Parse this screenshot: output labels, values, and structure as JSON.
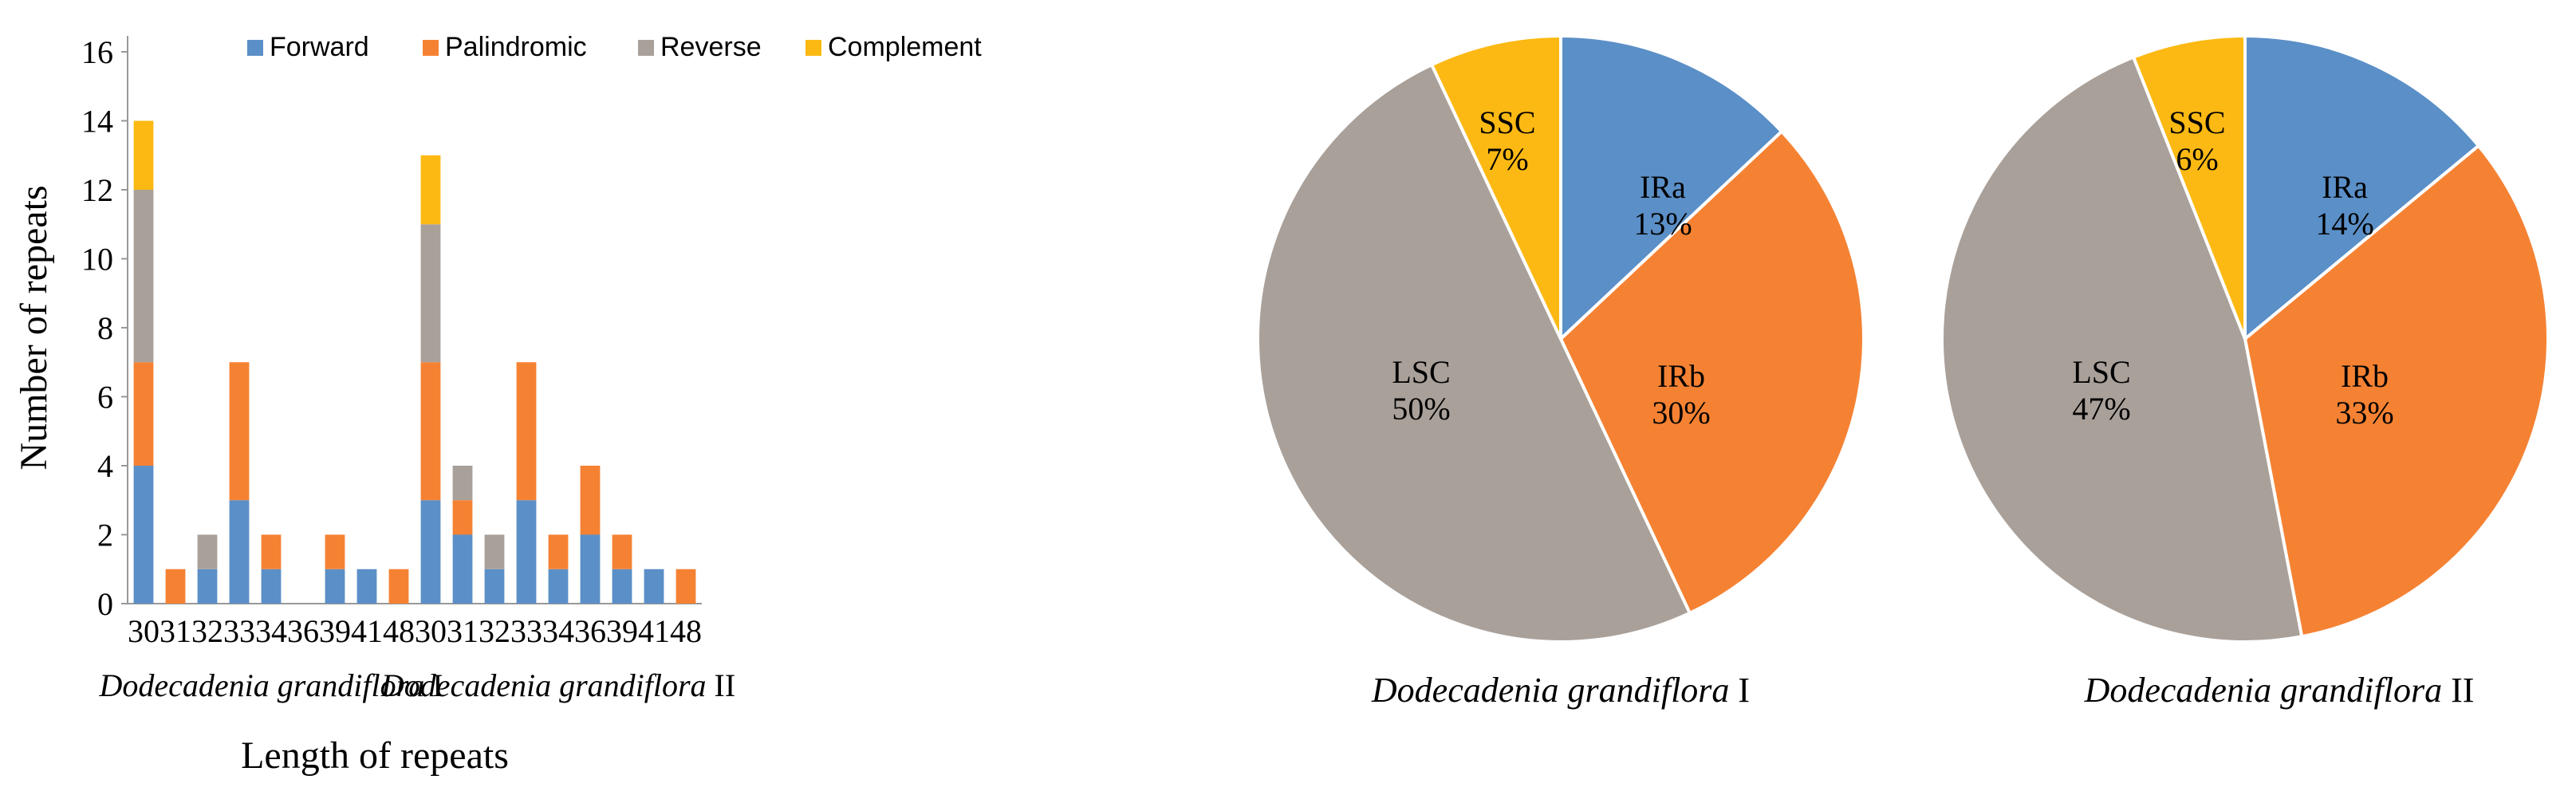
{
  "chart_data": [
    {
      "type": "bar",
      "stacked": true,
      "ylabel": "Number of repeats",
      "xlabel": "Length of repeats",
      "ylim": [
        0,
        16
      ],
      "yticks": [
        "0",
        "2",
        "4",
        "6",
        "8",
        "10",
        "12",
        "14",
        "16"
      ],
      "legend_position": "top",
      "groups": [
        {
          "name_italic": "Dodecadenia grandiflora",
          "name_suffix": "I",
          "categories": [
            "30",
            "31",
            "32",
            "33",
            "34",
            "36",
            "39",
            "41",
            "48"
          ]
        },
        {
          "name_italic": "Dodecadenia grandiflora",
          "name_suffix": "II",
          "categories": [
            "30",
            "31",
            "32",
            "33",
            "34",
            "36",
            "39",
            "41",
            "48"
          ]
        }
      ],
      "series": [
        {
          "name": "Forward",
          "color": "#5B8FC7",
          "values": [
            [
              4,
              0,
              1,
              3,
              1,
              0,
              1,
              1,
              0
            ],
            [
              3,
              2,
              1,
              3,
              1,
              2,
              1,
              1,
              0
            ]
          ]
        },
        {
          "name": "Palindromic",
          "color": "#F58233",
          "values": [
            [
              3,
              1,
              0,
              4,
              1,
              0,
              1,
              0,
              1
            ],
            [
              4,
              1,
              0,
              4,
              1,
              2,
              1,
              0,
              1
            ]
          ]
        },
        {
          "name": "Reverse",
          "color": "#A9A09A",
          "values": [
            [
              5,
              0,
              1,
              0,
              0,
              0,
              0,
              0,
              0
            ],
            [
              4,
              1,
              1,
              0,
              0,
              0,
              0,
              0,
              0
            ]
          ]
        },
        {
          "name": "Complement",
          "color": "#FDB913",
          "values": [
            [
              2,
              0,
              0,
              0,
              0,
              0,
              0,
              0,
              0
            ],
            [
              2,
              0,
              0,
              0,
              0,
              0,
              0,
              0,
              0
            ]
          ]
        }
      ]
    },
    {
      "type": "pie",
      "title_italic": "Dodecadenia grandiflora",
      "title_suffix": "I",
      "slices": [
        {
          "label": "IRa",
          "value": 13,
          "pct": "13%",
          "color": "#5B8FC7"
        },
        {
          "label": "IRb",
          "value": 30,
          "pct": "30%",
          "color": "#F58233"
        },
        {
          "label": "LSC",
          "value": 50,
          "pct": "50%",
          "color": "#A9A09A"
        },
        {
          "label": "SSC",
          "value": 7,
          "pct": "7%",
          "color": "#FDB913"
        }
      ]
    },
    {
      "type": "pie",
      "title_italic": "Dodecadenia grandiflora",
      "title_suffix": "II",
      "slices": [
        {
          "label": "IRa",
          "value": 14,
          "pct": "14%",
          "color": "#5B8FC7"
        },
        {
          "label": "IRb",
          "value": 33,
          "pct": "33%",
          "color": "#F58233"
        },
        {
          "label": "LSC",
          "value": 47,
          "pct": "47%",
          "color": "#A9A09A"
        },
        {
          "label": "SSC",
          "value": 6,
          "pct": "6%",
          "color": "#FDB913"
        }
      ]
    }
  ]
}
